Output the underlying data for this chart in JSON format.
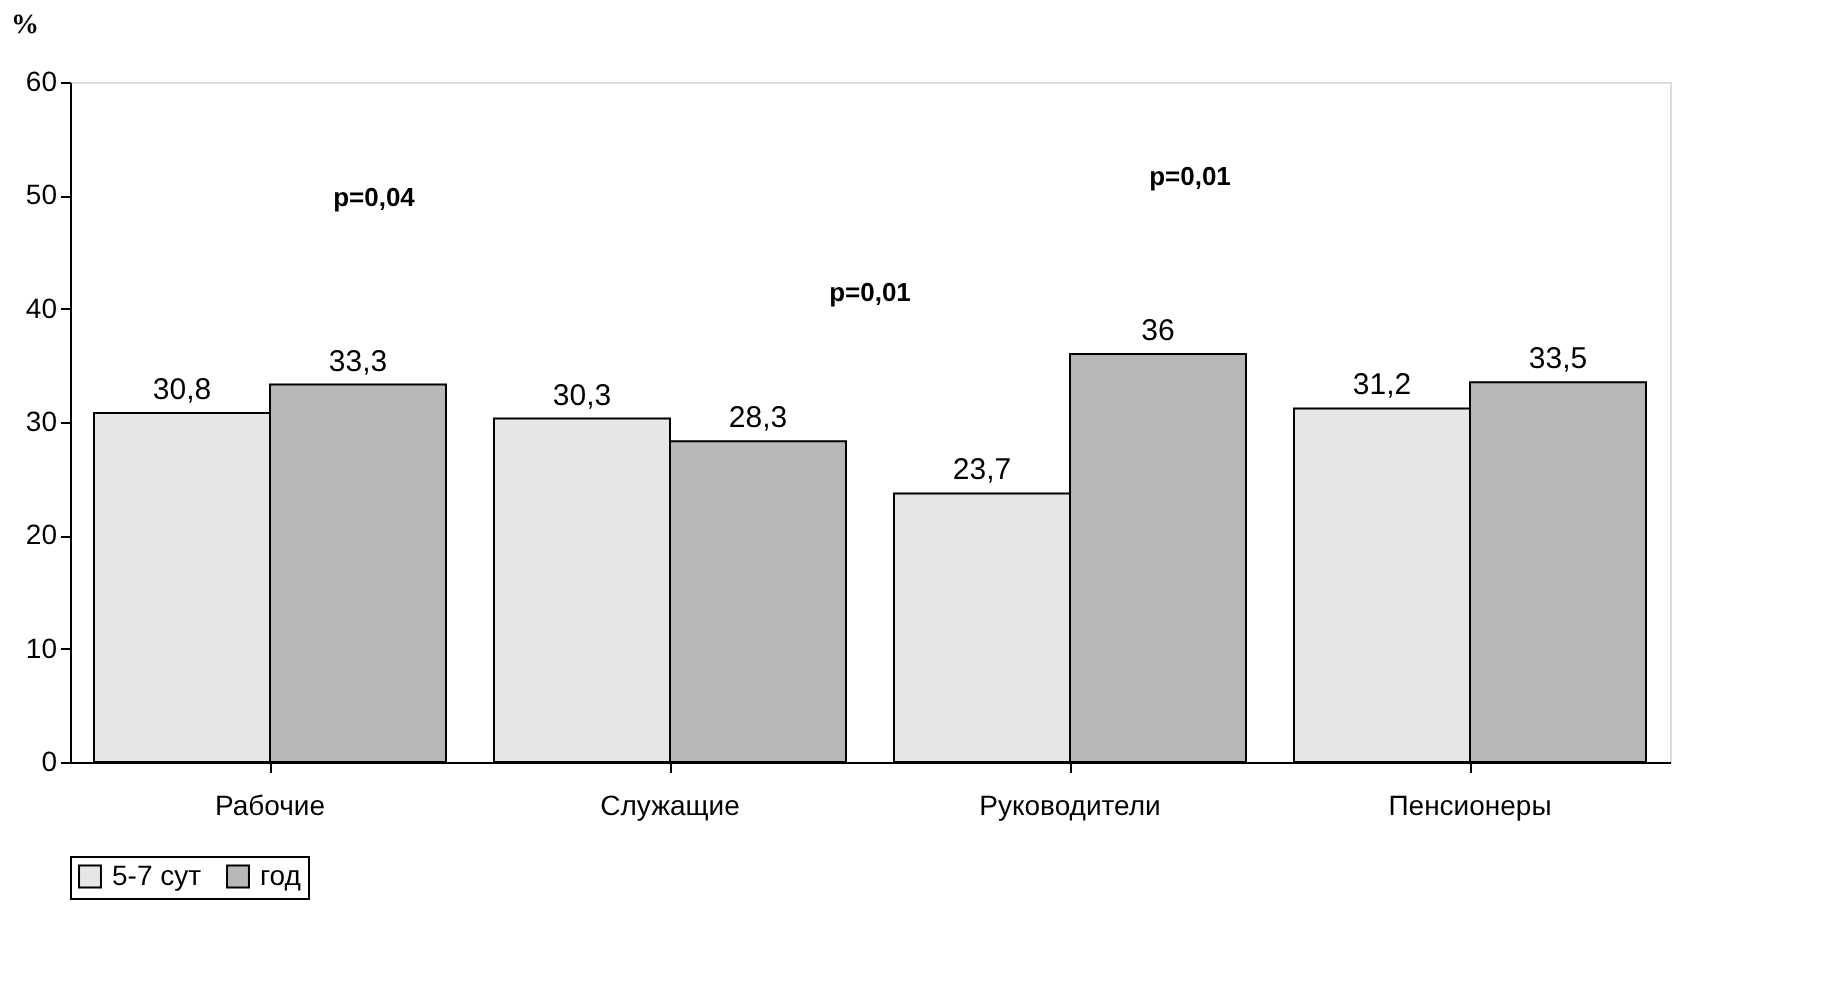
{
  "chart_data": {
    "type": "bar",
    "ylabel": "%",
    "categories": [
      "Рабочие",
      "Служащие",
      "Руководители",
      "Пенсионеры"
    ],
    "series": [
      {
        "name": "5-7 сут",
        "color": "#e6e6e6",
        "values": [
          30.8,
          30.3,
          23.7,
          31.2
        ],
        "value_labels": [
          "30,8",
          "30,3",
          "23,7",
          "31,2"
        ]
      },
      {
        "name": "год",
        "color": "#b8b8b8",
        "values": [
          33.3,
          28.3,
          36,
          33.5
        ],
        "value_labels": [
          "33,3",
          "28,3",
          "36",
          "33,5"
        ]
      }
    ],
    "ylim": [
      0,
      60
    ],
    "yticks": [
      0,
      10,
      20,
      30,
      40,
      50,
      60
    ],
    "grid": false,
    "legend": "bottom",
    "annotations": [
      "p=0,04",
      "p=0,01",
      "p=0,01"
    ]
  }
}
